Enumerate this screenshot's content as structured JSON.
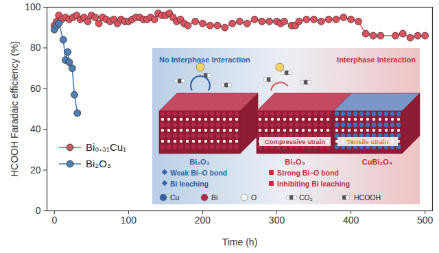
{
  "chart_data": {
    "type": "line",
    "x_label": "Time (h)",
    "y_label": "HCOOH Faradaic efficiency (%)",
    "xlim": [
      -10,
      510
    ],
    "xticks": [
      0,
      100,
      200,
      300,
      400,
      500
    ],
    "ylim": [
      0,
      100
    ],
    "yticks": [
      0,
      20,
      40,
      60,
      80,
      100
    ],
    "grid": false,
    "legend": "left",
    "series": [
      {
        "name": "Bi₀.₃₁Cu₁",
        "color": "#d9545f",
        "marker": "circle",
        "line_style": "solid",
        "x": [
          0,
          3,
          6,
          10,
          15,
          20,
          25,
          30,
          35,
          40,
          45,
          50,
          55,
          60,
          65,
          70,
          75,
          80,
          85,
          90,
          95,
          100,
          105,
          110,
          115,
          120,
          125,
          130,
          135,
          140,
          145,
          150,
          155,
          160,
          165,
          170,
          175,
          180,
          190,
          200,
          210,
          220,
          230,
          240,
          250,
          260,
          270,
          280,
          290,
          300,
          305,
          310,
          320,
          325,
          330,
          340,
          350,
          360,
          370,
          380,
          390,
          400,
          410,
          420,
          430,
          440,
          460,
          470,
          480,
          490,
          500
        ],
        "values": [
          91,
          93,
          96,
          94,
          95,
          94,
          95,
          96,
          94,
          95,
          93,
          96,
          95,
          92,
          95,
          94,
          93,
          94,
          92,
          94,
          93,
          93,
          94,
          95,
          95,
          94,
          94,
          95,
          94,
          97,
          96,
          96,
          97,
          95,
          93,
          94,
          92,
          91,
          93,
          92,
          91,
          91,
          90,
          92,
          93,
          92,
          94,
          93,
          93,
          93,
          92,
          93,
          91,
          91,
          93,
          94,
          94,
          93,
          94,
          94,
          95,
          94,
          93,
          87,
          86,
          86,
          86,
          87,
          85,
          86,
          86
        ]
      },
      {
        "name": "Bi₂O₃",
        "color": "#4a80b5",
        "marker": "circle",
        "line_style": "solid",
        "x": [
          0,
          3,
          6,
          12,
          15,
          18,
          20,
          24,
          27,
          31
        ],
        "values": [
          89,
          91,
          92,
          84,
          74,
          78,
          73,
          70,
          57,
          48
        ]
      }
    ],
    "annotations": [
      "No Interphase Interaction",
      "Interphase Interaction",
      "Bi₂O₃",
      "Compressive strain",
      "Tensile strain",
      "Bi₂O₃",
      "CuBi₂O₄",
      "Weak Bi–O bond",
      "Bi leaching",
      "Strong Bi–O bond",
      "Inhibiting Bi leaching",
      "Cu",
      "Bi",
      "O",
      "CO₂",
      "HCOOH"
    ]
  }
}
